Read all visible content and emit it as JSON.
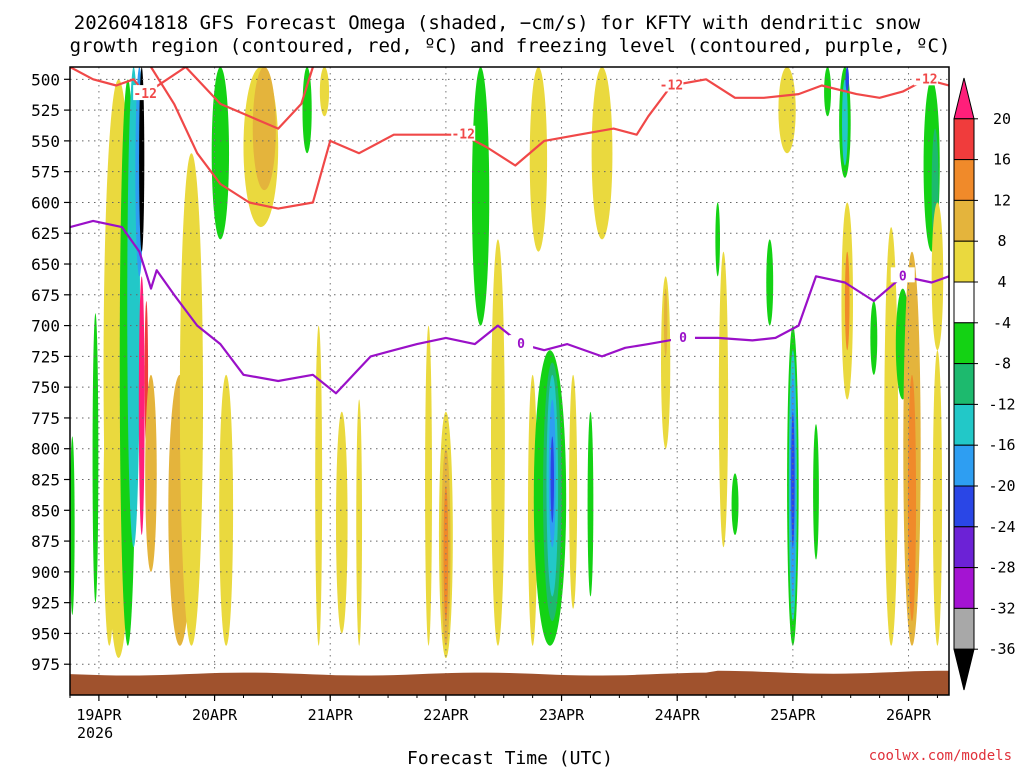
{
  "title_line1": "2026041818 GFS Forecast Omega (shaded, −cm/s) for KFTY with dendritic snow",
  "title_line2": "growth region (contoured, red, ºC) and freezing level (contoured, purple, ºC)",
  "credit": "coolwx.com/models",
  "colors": {
    "red_contour": "#f04848",
    "purple_contour": "#9a10c8",
    "ground": "#a0522d"
  },
  "chart_data": {
    "type": "heatmap",
    "xlabel": "Forecast Time (UTC)",
    "ylabel": "",
    "x_range": [
      0,
      7.6
    ],
    "y_range_hpa": [
      490,
      1000
    ],
    "y_ticks": [
      "500",
      "525",
      "550",
      "575",
      "600",
      "625",
      "650",
      "675",
      "700",
      "725",
      "750",
      "775",
      "800",
      "825",
      "850",
      "875",
      "900",
      "925",
      "950",
      "975"
    ],
    "x_ticks": [
      {
        "label": "19APR",
        "day": 0.25
      },
      {
        "label": "20APR",
        "day": 1.25
      },
      {
        "label": "21APR",
        "day": 2.25
      },
      {
        "label": "22APR",
        "day": 3.25
      },
      {
        "label": "23APR",
        "day": 4.25
      },
      {
        "label": "24APR",
        "day": 5.25
      },
      {
        "label": "25APR",
        "day": 6.25
      },
      {
        "label": "26APR",
        "day": 7.25
      }
    ],
    "x_sublabel": "2026",
    "colorbar": {
      "labels": [
        "20",
        "16",
        "12",
        "8",
        "4",
        "-4",
        "-8",
        "-12",
        "-16",
        "-20",
        "-24",
        "-28",
        "-32",
        "-36"
      ],
      "colors": [
        "#ff1f7a",
        "#f03c3c",
        "#f08a2a",
        "#e4b43c",
        "#ead93e",
        "#ffffff",
        "#14d214",
        "#1dba6e",
        "#22c8c8",
        "#2e9ef2",
        "#2a46e6",
        "#6c22d6",
        "#a414d2",
        "#a8a8a8",
        "#000000"
      ]
    },
    "shaded_regions": [
      {
        "day": 0.02,
        "p_top": 790,
        "p_bot": 935,
        "width": 0.04,
        "color": "#14d214"
      },
      {
        "day": 0.22,
        "p_top": 690,
        "p_bot": 925,
        "width": 0.05,
        "color": "#14d214"
      },
      {
        "day": 0.34,
        "p_top": 730,
        "p_bot": 960,
        "width": 0.1,
        "color": "#ead93e"
      },
      {
        "day": 0.42,
        "p_top": 500,
        "p_bot": 970,
        "width": 0.26,
        "color": "#ead93e"
      },
      {
        "day": 0.5,
        "p_top": 500,
        "p_bot": 960,
        "width": 0.14,
        "color": "#14d214"
      },
      {
        "day": 0.55,
        "p_top": 490,
        "p_bot": 880,
        "width": 0.11,
        "color": "#22c8c8"
      },
      {
        "day": 0.6,
        "p_top": 490,
        "p_bot": 660,
        "width": 0.07,
        "color": "#2e9ef2"
      },
      {
        "day": 0.62,
        "p_top": 490,
        "p_bot": 640,
        "width": 0.045,
        "color": "#000000"
      },
      {
        "day": 0.62,
        "p_top": 660,
        "p_bot": 870,
        "width": 0.05,
        "color": "#ff1f7a"
      },
      {
        "day": 0.66,
        "p_top": 680,
        "p_bot": 800,
        "width": 0.03,
        "color": "#f03c3c"
      },
      {
        "day": 0.7,
        "p_top": 740,
        "p_bot": 900,
        "width": 0.1,
        "color": "#e4b43c"
      },
      {
        "day": 0.95,
        "p_top": 740,
        "p_bot": 960,
        "width": 0.2,
        "color": "#e4b43c"
      },
      {
        "day": 1.05,
        "p_top": 560,
        "p_bot": 960,
        "width": 0.2,
        "color": "#ead93e"
      },
      {
        "day": 1.3,
        "p_top": 490,
        "p_bot": 630,
        "width": 0.15,
        "color": "#14d214"
      },
      {
        "day": 1.35,
        "p_top": 740,
        "p_bot": 960,
        "width": 0.12,
        "color": "#ead93e"
      },
      {
        "day": 1.65,
        "p_top": 490,
        "p_bot": 620,
        "width": 0.3,
        "color": "#ead93e"
      },
      {
        "day": 1.68,
        "p_top": 490,
        "p_bot": 590,
        "width": 0.2,
        "color": "#e4b43c"
      },
      {
        "day": 2.05,
        "p_top": 490,
        "p_bot": 560,
        "width": 0.08,
        "color": "#14d214"
      },
      {
        "day": 2.2,
        "p_top": 490,
        "p_bot": 530,
        "width": 0.08,
        "color": "#ead93e"
      },
      {
        "day": 2.15,
        "p_top": 700,
        "p_bot": 960,
        "width": 0.06,
        "color": "#ead93e"
      },
      {
        "day": 2.35,
        "p_top": 770,
        "p_bot": 950,
        "width": 0.1,
        "color": "#ead93e"
      },
      {
        "day": 2.5,
        "p_top": 760,
        "p_bot": 960,
        "width": 0.05,
        "color": "#ead93e"
      },
      {
        "day": 3.1,
        "p_top": 700,
        "p_bot": 960,
        "width": 0.06,
        "color": "#ead93e"
      },
      {
        "day": 3.25,
        "p_top": 770,
        "p_bot": 970,
        "width": 0.12,
        "color": "#ead93e"
      },
      {
        "day": 3.25,
        "p_top": 800,
        "p_bot": 960,
        "width": 0.08,
        "color": "#e4b43c"
      },
      {
        "day": 3.25,
        "p_top": 830,
        "p_bot": 940,
        "width": 0.04,
        "color": "#f08a2a"
      },
      {
        "day": 3.55,
        "p_top": 490,
        "p_bot": 700,
        "width": 0.15,
        "color": "#14d214"
      },
      {
        "day": 3.7,
        "p_top": 630,
        "p_bot": 960,
        "width": 0.12,
        "color": "#ead93e"
      },
      {
        "day": 4.05,
        "p_top": 490,
        "p_bot": 640,
        "width": 0.15,
        "color": "#ead93e"
      },
      {
        "day": 4.0,
        "p_top": 740,
        "p_bot": 960,
        "width": 0.08,
        "color": "#ead93e"
      },
      {
        "day": 4.15,
        "p_top": 720,
        "p_bot": 960,
        "width": 0.28,
        "color": "#14d214"
      },
      {
        "day": 4.17,
        "p_top": 730,
        "p_bot": 940,
        "width": 0.16,
        "color": "#1dba6e"
      },
      {
        "day": 4.17,
        "p_top": 740,
        "p_bot": 920,
        "width": 0.1,
        "color": "#22c8c8"
      },
      {
        "day": 4.17,
        "p_top": 760,
        "p_bot": 880,
        "width": 0.06,
        "color": "#2e9ef2"
      },
      {
        "day": 4.17,
        "p_top": 790,
        "p_bot": 860,
        "width": 0.03,
        "color": "#2a46e6"
      },
      {
        "day": 4.35,
        "p_top": 740,
        "p_bot": 930,
        "width": 0.07,
        "color": "#ead93e"
      },
      {
        "day": 4.5,
        "p_top": 770,
        "p_bot": 920,
        "width": 0.05,
        "color": "#14d214"
      },
      {
        "day": 4.6,
        "p_top": 490,
        "p_bot": 630,
        "width": 0.18,
        "color": "#ead93e"
      },
      {
        "day": 5.15,
        "p_top": 660,
        "p_bot": 800,
        "width": 0.08,
        "color": "#ead93e"
      },
      {
        "day": 5.15,
        "p_top": 670,
        "p_bot": 725,
        "width": 0.03,
        "color": "#e4b43c"
      },
      {
        "day": 5.6,
        "p_top": 600,
        "p_bot": 660,
        "width": 0.04,
        "color": "#14d214"
      },
      {
        "day": 5.65,
        "p_top": 640,
        "p_bot": 880,
        "width": 0.08,
        "color": "#ead93e"
      },
      {
        "day": 5.75,
        "p_top": 820,
        "p_bot": 870,
        "width": 0.06,
        "color": "#14d214"
      },
      {
        "day": 6.05,
        "p_top": 630,
        "p_bot": 700,
        "width": 0.06,
        "color": "#14d214"
      },
      {
        "day": 6.2,
        "p_top": 490,
        "p_bot": 560,
        "width": 0.15,
        "color": "#ead93e"
      },
      {
        "day": 6.55,
        "p_top": 490,
        "p_bot": 530,
        "width": 0.06,
        "color": "#14d214"
      },
      {
        "day": 6.25,
        "p_top": 700,
        "p_bot": 960,
        "width": 0.1,
        "color": "#14d214"
      },
      {
        "day": 6.25,
        "p_top": 720,
        "p_bot": 940,
        "width": 0.07,
        "color": "#22c8c8"
      },
      {
        "day": 6.25,
        "p_top": 740,
        "p_bot": 920,
        "width": 0.05,
        "color": "#2e9ef2"
      },
      {
        "day": 6.25,
        "p_top": 770,
        "p_bot": 880,
        "width": 0.03,
        "color": "#2a46e6"
      },
      {
        "day": 6.45,
        "p_top": 780,
        "p_bot": 890,
        "width": 0.05,
        "color": "#14d214"
      },
      {
        "day": 6.7,
        "p_top": 490,
        "p_bot": 580,
        "width": 0.1,
        "color": "#14d214"
      },
      {
        "day": 6.7,
        "p_top": 500,
        "p_bot": 570,
        "width": 0.05,
        "color": "#22c8c8"
      },
      {
        "day": 6.72,
        "p_top": 490,
        "p_bot": 510,
        "width": 0.03,
        "color": "#2a46e6"
      },
      {
        "day": 6.72,
        "p_top": 600,
        "p_bot": 760,
        "width": 0.1,
        "color": "#ead93e"
      },
      {
        "day": 6.72,
        "p_top": 640,
        "p_bot": 720,
        "width": 0.04,
        "color": "#f08a2a"
      },
      {
        "day": 6.95,
        "p_top": 680,
        "p_bot": 740,
        "width": 0.06,
        "color": "#14d214"
      },
      {
        "day": 7.1,
        "p_top": 620,
        "p_bot": 960,
        "width": 0.12,
        "color": "#ead93e"
      },
      {
        "day": 7.2,
        "p_top": 670,
        "p_bot": 760,
        "width": 0.12,
        "color": "#14d214"
      },
      {
        "day": 7.28,
        "p_top": 640,
        "p_bot": 960,
        "width": 0.15,
        "color": "#e4b43c"
      },
      {
        "day": 7.28,
        "p_top": 740,
        "p_bot": 940,
        "width": 0.07,
        "color": "#f08a2a"
      },
      {
        "day": 7.45,
        "p_top": 500,
        "p_bot": 640,
        "width": 0.14,
        "color": "#14d214"
      },
      {
        "day": 7.48,
        "p_top": 540,
        "p_bot": 640,
        "width": 0.06,
        "color": "#1dba6e"
      },
      {
        "day": 7.5,
        "p_top": 600,
        "p_bot": 720,
        "width": 0.1,
        "color": "#ead93e"
      },
      {
        "day": 7.5,
        "p_top": 720,
        "p_bot": 960,
        "width": 0.08,
        "color": "#ead93e"
      }
    ],
    "dgz_top_-12C": {
      "label": "-12",
      "points": [
        [
          0,
          490
        ],
        [
          0.2,
          500
        ],
        [
          0.4,
          505
        ],
        [
          0.55,
          500
        ],
        [
          0.65,
          512
        ],
        [
          1.0,
          490
        ],
        [
          1.3,
          520
        ],
        [
          1.55,
          530
        ],
        [
          1.8,
          540
        ],
        [
          2.0,
          520
        ],
        [
          2.1,
          490
        ]
      ]
    },
    "dgz_bottom_-12C": {
      "label": "-12",
      "points": [
        [
          0.7,
          490
        ],
        [
          0.9,
          520
        ],
        [
          1.1,
          560
        ],
        [
          1.3,
          585
        ],
        [
          1.55,
          600
        ],
        [
          1.8,
          605
        ],
        [
          2.1,
          600
        ],
        [
          2.25,
          550
        ],
        [
          2.5,
          560
        ],
        [
          2.8,
          545
        ],
        [
          3.1,
          545
        ],
        [
          3.4,
          545
        ],
        [
          3.6,
          555
        ],
        [
          3.85,
          570
        ],
        [
          4.1,
          550
        ],
        [
          4.4,
          545
        ],
        [
          4.7,
          540
        ],
        [
          4.9,
          545
        ],
        [
          5.0,
          530
        ],
        [
          5.2,
          505
        ],
        [
          5.5,
          500
        ],
        [
          5.75,
          515
        ],
        [
          6.0,
          515
        ],
        [
          6.3,
          512
        ],
        [
          6.5,
          505
        ],
        [
          6.8,
          512
        ],
        [
          7.0,
          515
        ],
        [
          7.2,
          510
        ],
        [
          7.4,
          500
        ],
        [
          7.6,
          505
        ]
      ]
    },
    "freezing_level_0C": {
      "label": "0",
      "points": [
        [
          0,
          620
        ],
        [
          0.2,
          615
        ],
        [
          0.45,
          620
        ],
        [
          0.6,
          640
        ],
        [
          0.7,
          670
        ],
        [
          0.75,
          655
        ],
        [
          0.9,
          675
        ],
        [
          1.1,
          700
        ],
        [
          1.3,
          715
        ],
        [
          1.5,
          740
        ],
        [
          1.8,
          745
        ],
        [
          2.1,
          740
        ],
        [
          2.3,
          755
        ],
        [
          2.45,
          740
        ],
        [
          2.6,
          725
        ],
        [
          2.8,
          720
        ],
        [
          3.0,
          715
        ],
        [
          3.25,
          710
        ],
        [
          3.5,
          715
        ],
        [
          3.7,
          700
        ],
        [
          3.9,
          715
        ],
        [
          4.1,
          720
        ],
        [
          4.3,
          715
        ],
        [
          4.6,
          725
        ],
        [
          4.8,
          718
        ],
        [
          5.0,
          715
        ],
        [
          5.3,
          710
        ],
        [
          5.6,
          710
        ],
        [
          5.9,
          712
        ],
        [
          6.1,
          710
        ],
        [
          6.3,
          700
        ],
        [
          6.45,
          660
        ],
        [
          6.7,
          665
        ],
        [
          6.95,
          680
        ],
        [
          7.2,
          660
        ],
        [
          7.45,
          665
        ],
        [
          7.6,
          660
        ]
      ]
    }
  }
}
